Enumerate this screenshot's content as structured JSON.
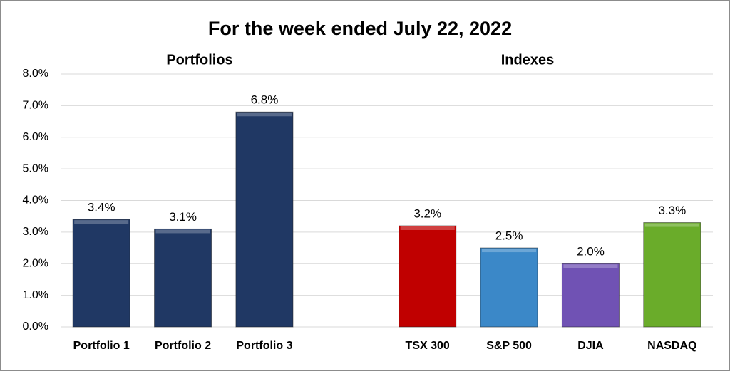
{
  "chart_data": {
    "type": "bar",
    "title": "For the week ended July 22, 2022",
    "annotations": [
      "Portfolios",
      "Indexes"
    ],
    "categories": [
      "Portfolio 1",
      "Portfolio 2",
      "Portfolio 3",
      null,
      "TSX 300",
      "S&P 500",
      "DJIA",
      "NASDAQ"
    ],
    "values": [
      3.4,
      3.1,
      6.8,
      null,
      3.2,
      2.5,
      2.0,
      3.3
    ],
    "value_labels": [
      "3.4%",
      "3.1%",
      "6.8%",
      null,
      "3.2%",
      "2.5%",
      "2.0%",
      "3.3%"
    ],
    "colors": [
      "#203864",
      "#203864",
      "#203864",
      null,
      "#c00000",
      "#3b88c8",
      "#7052b4",
      "#6aac2a"
    ],
    "ylim": [
      0,
      8
    ],
    "yticks": [
      {
        "value": 0,
        "label": "0.0%"
      },
      {
        "value": 1,
        "label": "1.0%"
      },
      {
        "value": 2,
        "label": "2.0%"
      },
      {
        "value": 3,
        "label": "3.0%"
      },
      {
        "value": 4,
        "label": "4.0%"
      },
      {
        "value": 5,
        "label": "5.0%"
      },
      {
        "value": 6,
        "label": "6.0%"
      },
      {
        "value": 7,
        "label": "7.0%"
      },
      {
        "value": 8,
        "label": "8.0%"
      }
    ],
    "grid": true
  }
}
